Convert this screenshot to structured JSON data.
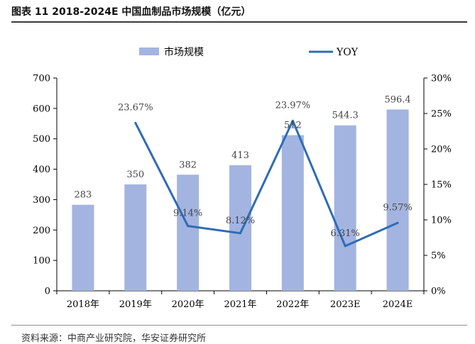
{
  "header": {
    "title": "图表 11 2018-2024E 中国血制品市场规模（亿元）"
  },
  "footer": {
    "source": "资料来源：中商产业研究院，华安证券研究所"
  },
  "colors": {
    "bar": "#a3b4e0",
    "line": "#2e6cb5",
    "axis": "#000000"
  },
  "chart_data": {
    "type": "bar",
    "categories": [
      "2018年",
      "2019年",
      "2020年",
      "2021年",
      "2022年",
      "2023E",
      "2024E"
    ],
    "series": [
      {
        "name": "市场规模",
        "type": "bar",
        "axis": "left",
        "values": [
          283,
          350,
          382,
          413,
          512,
          544.3,
          596.4
        ],
        "labels": [
          "283",
          "350",
          "382",
          "413",
          "512",
          "544.3",
          "596.4"
        ]
      },
      {
        "name": "YOY",
        "type": "line",
        "axis": "right",
        "values": [
          null,
          23.67,
          9.14,
          8.12,
          23.97,
          6.31,
          9.57
        ],
        "labels": [
          null,
          "23.67%",
          "9.14%",
          "8.12%",
          "23.97%",
          "6.31%",
          "9.57%"
        ]
      }
    ],
    "y_left": {
      "min": 0,
      "max": 700,
      "step": 100,
      "ticks": [
        "0",
        "100",
        "200",
        "300",
        "400",
        "500",
        "600",
        "700"
      ]
    },
    "y_right": {
      "min": 0,
      "max": 30,
      "step": 5,
      "ticks": [
        "0%",
        "5%",
        "10%",
        "15%",
        "20%",
        "25%",
        "30%"
      ]
    },
    "legend_position": "top",
    "grid": false
  }
}
